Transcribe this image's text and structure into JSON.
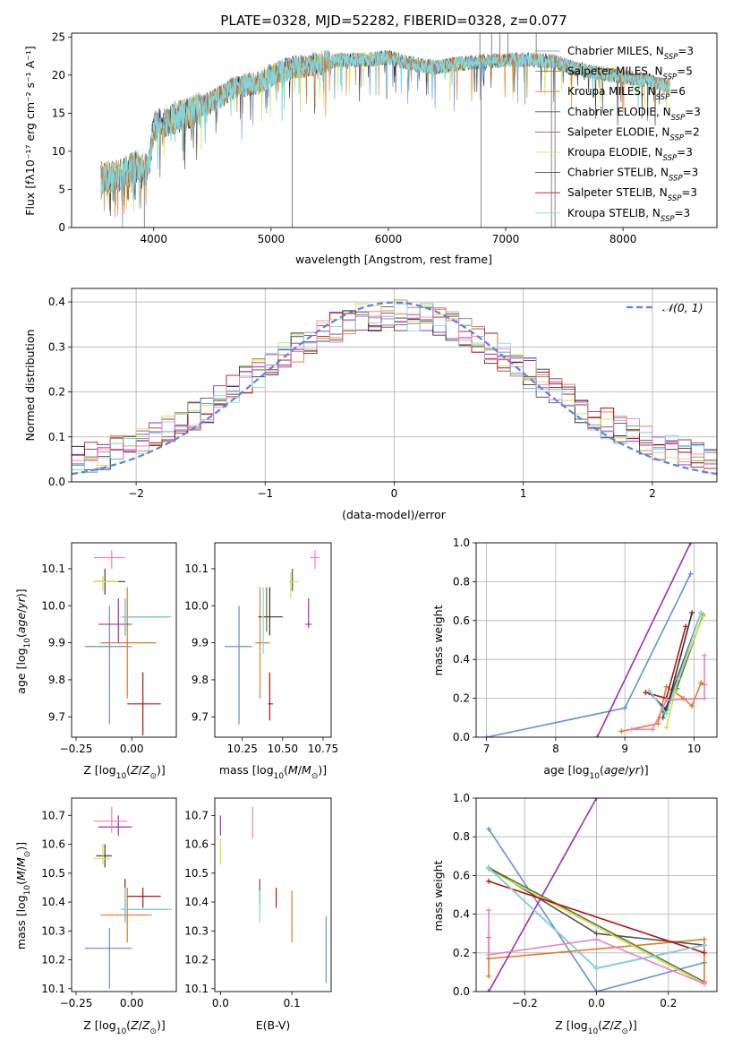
{
  "figure_title": "PLATE=0328, MJD=52282, FIBERID=0328, z=0.077",
  "colors": {
    "Chabrier MILES": "#6a8fd6",
    "Salpeter MILES": "#5a7a3a",
    "Kroupa MILES": "#e07b27",
    "Chabrier ELODIE": "#555555",
    "Salpeter ELODIE": "#9b30b0",
    "Kroupa ELODIE": "#d4e04a",
    "Chabrier STELIB": "#333333",
    "Salpeter STELIB": "#b31515",
    "Kroupa STELIB": "#80d8e0",
    "pink": "#e884c0",
    "purple": "#8a2cb0"
  },
  "chart_data": [
    {
      "type": "line",
      "title": "PLATE=0328, MJD=52282, FIBERID=0328, z=0.077",
      "xlabel": "wavelength [Angstrom, rest frame]",
      "ylabel": "Flux [fλ10⁻¹⁷ erg cm⁻² s⁻¹ A⁻¹]",
      "xlim": [
        3300,
        8800
      ],
      "ylim": [
        0,
        25.5
      ],
      "xticks": [
        4000,
        5000,
        6000,
        7000,
        8000
      ],
      "yticks": [
        0,
        5,
        10,
        15,
        20,
        25
      ],
      "legend_position": "top-right",
      "legend": [
        {
          "label": "Chabrier MILES, N",
          "sub": "SSP",
          "suffix": "=3"
        },
        {
          "label": "Salpeter MILES, N",
          "sub": "SSP",
          "suffix": "=5"
        },
        {
          "label": "Kroupa MILES, N",
          "sub": "SSP",
          "suffix": "=6"
        },
        {
          "label": "Chabrier ELODIE, N",
          "sub": "SSP",
          "suffix": "=3"
        },
        {
          "label": "Salpeter ELODIE, N",
          "sub": "SSP",
          "suffix": "=2"
        },
        {
          "label": "Kroupa ELODIE, N",
          "sub": "SSP",
          "suffix": "=3"
        },
        {
          "label": "Chabrier STELIB, N",
          "sub": "SSP",
          "suffix": "=3"
        },
        {
          "label": "Salpeter STELIB, N",
          "sub": "SSP",
          "suffix": "=3"
        },
        {
          "label": "Kroupa STELIB, N",
          "sub": "SSP",
          "suffix": "=3"
        }
      ],
      "spectrum_envelope": {
        "x": [
          3550,
          3700,
          3850,
          3950,
          4000,
          4100,
          4300,
          4500,
          4700,
          4900,
          5000,
          5200,
          5400,
          5600,
          5800,
          6000,
          6200,
          6400,
          6600,
          6800,
          7000,
          7200,
          7400,
          7600,
          7800,
          8000,
          8200,
          8400
        ],
        "y": [
          6.5,
          6.8,
          8.0,
          7.5,
          13.0,
          14.0,
          15.0,
          16.5,
          18.5,
          19.0,
          20.0,
          21.0,
          21.5,
          22.0,
          22.0,
          22.3,
          21.5,
          21.0,
          21.5,
          21.8,
          22.0,
          22.0,
          21.8,
          20.8,
          20.2,
          19.8,
          19.3,
          18.5
        ]
      }
    },
    {
      "type": "line",
      "xlabel": "(data-model)/error",
      "ylabel": "Normed distribution",
      "xlim": [
        -2.5,
        2.5
      ],
      "ylim": [
        0,
        0.43
      ],
      "xticks": [
        -2,
        -1,
        0,
        1,
        2
      ],
      "yticks": [
        0.0,
        0.1,
        0.2,
        0.3,
        0.4
      ],
      "legend_position": "top-right",
      "legend": [
        {
          "label": "𝒩(0, 1)"
        }
      ],
      "gaussian": {
        "mean": 0,
        "sigma": 1
      }
    },
    {
      "type": "scatter",
      "xlabel": "Z [log10(Z/Z⊙)]",
      "ylabel": "age  [log10(age/yr)]",
      "xlim": [
        -0.27,
        0.2
      ],
      "ylim": [
        9.645,
        10.17
      ],
      "xticks": [
        -0.25,
        0.0
      ],
      "xtick_labels": [
        "−0.25",
        "0.00"
      ],
      "yticks": [
        9.7,
        9.8,
        9.9,
        10.0,
        10.1
      ],
      "errorbars": [
        {
          "name": "Chabrier MILES",
          "x": -0.1,
          "y": 9.89,
          "x0": -0.21,
          "x1": 0.0,
          "y0": 9.68,
          "y1": 10.0
        },
        {
          "name": "Salpeter MILES",
          "x": -0.12,
          "y": 10.065,
          "x0": -0.17,
          "x1": -0.03,
          "y0": 10.03,
          "y1": 10.1
        },
        {
          "name": "Kroupa MILES",
          "x": -0.02,
          "y": 9.9,
          "x0": -0.14,
          "x1": 0.11,
          "y0": 9.75,
          "y1": 10.05
        },
        {
          "name": "Chabrier ELODIE",
          "x": -0.12,
          "y": 10.065,
          "x0": -0.17,
          "x1": -0.03,
          "y0": 10.03,
          "y1": 10.1
        },
        {
          "name": "Salpeter ELODIE",
          "x": -0.06,
          "y": 9.95,
          "x0": -0.15,
          "x1": 0.0,
          "y0": 9.9,
          "y1": 10.02
        },
        {
          "name": "Kroupa ELODIE",
          "x": -0.13,
          "y": 10.065,
          "x0": -0.17,
          "x1": -0.06,
          "y0": 10.04,
          "y1": 10.08
        },
        {
          "name": "Chabrier STELIB",
          "x": -0.03,
          "y": 9.97,
          "x0": -0.04,
          "x1": 0.17,
          "y0": 9.92,
          "y1": 10.02
        },
        {
          "name": "Salpeter STELIB",
          "x": 0.05,
          "y": 9.735,
          "x0": -0.02,
          "x1": 0.13,
          "y0": 9.65,
          "y1": 9.82
        },
        {
          "name": "Kroupa STELIB",
          "x": -0.03,
          "y": 9.97,
          "x0": -0.05,
          "x1": 0.18,
          "y0": 9.92,
          "y1": 10.02
        },
        {
          "name": "pink",
          "x": -0.09,
          "y": 10.13,
          "x0": -0.17,
          "x1": -0.03,
          "y0": 10.1,
          "y1": 10.15
        }
      ]
    },
    {
      "type": "scatter",
      "xlabel": "mass [log10(M/M⊙)]",
      "xlim": [
        10.08,
        10.8
      ],
      "ylim": [
        9.645,
        10.17
      ],
      "xticks": [
        10.25,
        10.5,
        10.75
      ],
      "xtick_labels": [
        "10.25",
        "10.50",
        "10.75"
      ],
      "yticks": [
        9.7,
        9.8,
        9.9,
        10.0,
        10.1
      ],
      "errorbars": [
        {
          "name": "Chabrier MILES",
          "x": 10.23,
          "y": 9.89,
          "x0": 10.14,
          "x1": 10.31,
          "y0": 9.68,
          "y1": 10.0
        },
        {
          "name": "Salpeter MILES",
          "x": 10.4,
          "y": 9.97,
          "x0": 10.4,
          "x1": 10.4,
          "y0": 9.93,
          "y1": 10.05
        },
        {
          "name": "Kroupa MILES",
          "x": 10.36,
          "y": 9.9,
          "x0": 10.33,
          "x1": 10.42,
          "y0": 9.75,
          "y1": 10.05
        },
        {
          "name": "Chabrier ELODIE",
          "x": 10.56,
          "y": 10.065,
          "x0": 10.56,
          "x1": 10.56,
          "y0": 10.04,
          "y1": 10.1
        },
        {
          "name": "Salpeter ELODIE",
          "x": 10.66,
          "y": 9.95,
          "x0": 10.64,
          "x1": 10.68,
          "y0": 9.94,
          "y1": 10.02
        },
        {
          "name": "Kroupa ELODIE",
          "x": 10.55,
          "y": 10.065,
          "x0": 10.54,
          "x1": 10.6,
          "y0": 10.02,
          "y1": 10.09
        },
        {
          "name": "Chabrier STELIB",
          "x": 10.42,
          "y": 9.97,
          "x0": 10.35,
          "x1": 10.5,
          "y0": 9.92,
          "y1": 10.05
        },
        {
          "name": "Salpeter STELIB",
          "x": 10.42,
          "y": 9.735,
          "x0": 10.41,
          "x1": 10.44,
          "y0": 9.69,
          "y1": 9.82
        },
        {
          "name": "Kroupa STELIB",
          "x": 10.38,
          "y": 9.97,
          "x0": 10.37,
          "x1": 10.38,
          "y0": 9.87,
          "y1": 10.05
        },
        {
          "name": "pink",
          "x": 10.7,
          "y": 10.13,
          "x0": 10.67,
          "x1": 10.73,
          "y0": 10.1,
          "y1": 10.15
        }
      ]
    },
    {
      "type": "line",
      "xlabel": "age  [log10(age/yr)]",
      "ylabel": "mass weight",
      "xlim": [
        6.85,
        10.33
      ],
      "ylim": [
        0,
        1.0
      ],
      "xticks": [
        7,
        8,
        9,
        10
      ],
      "yticks": [
        0.0,
        0.2,
        0.4,
        0.6,
        0.8,
        1.0
      ],
      "series": [
        {
          "name": "Chabrier MILES",
          "x": [
            7.0,
            9.0,
            9.95
          ],
          "y": [
            0.0,
            0.15,
            0.84
          ]
        },
        {
          "name": "Salpeter MILES",
          "x": [
            9.55,
            9.75,
            10.13
          ],
          "y": [
            0.13,
            0.25,
            0.63
          ]
        },
        {
          "name": "Kroupa MILES",
          "x": [
            8.95,
            9.48,
            9.6,
            9.85,
            9.97,
            10.1,
            10.15
          ],
          "y": [
            0.03,
            0.07,
            0.26,
            0.2,
            0.16,
            0.28,
            0.27
          ]
        },
        {
          "name": "Chabrier ELODIE",
          "x": [
            9.55,
            9.75,
            10.1
          ],
          "y": [
            0.1,
            0.3,
            0.64
          ]
        },
        {
          "name": "Salpeter ELODIE",
          "x": [
            8.6,
            9.95
          ],
          "y": [
            0.0,
            1.0
          ]
        },
        {
          "name": "Kroupa ELODIE",
          "x": [
            9.6,
            9.77,
            10.13
          ],
          "y": [
            0.05,
            0.3,
            0.62
          ]
        },
        {
          "name": "Chabrier STELIB",
          "x": [
            9.35,
            9.6,
            9.97
          ],
          "y": [
            0.23,
            0.14,
            0.64
          ]
        },
        {
          "name": "Salpeter STELIB",
          "x": [
            9.3,
            9.6,
            9.88
          ],
          "y": [
            0.23,
            0.2,
            0.57
          ]
        },
        {
          "name": "Kroupa STELIB",
          "x": [
            9.35,
            9.6,
            10.1
          ],
          "y": [
            0.24,
            0.12,
            0.64
          ]
        },
        {
          "name": "pink",
          "x": [
            9.1,
            9.4,
            9.6,
            10.15,
            10.15
          ],
          "y": [
            0.04,
            0.04,
            0.19,
            0.2,
            0.42
          ]
        }
      ]
    },
    {
      "type": "scatter",
      "xlabel": "Z [log10(Z/Z⊙)]",
      "ylabel": "mass [log10(M/M⊙)]",
      "xlim": [
        -0.27,
        0.2
      ],
      "ylim": [
        10.09,
        10.76
      ],
      "xticks": [
        -0.25,
        0.0
      ],
      "xtick_labels": [
        "−0.25",
        "0.00"
      ],
      "yticks": [
        10.1,
        10.2,
        10.3,
        10.4,
        10.5,
        10.6,
        10.7
      ],
      "errorbars": [
        {
          "name": "Chabrier MILES",
          "x": -0.1,
          "y": 10.24,
          "x0": -0.21,
          "x1": 0.0,
          "y0": 10.1,
          "y1": 10.31
        },
        {
          "name": "Salpeter MILES",
          "x": -0.12,
          "y": 10.56,
          "x0": -0.16,
          "x1": -0.09,
          "y0": 10.52,
          "y1": 10.6
        },
        {
          "name": "Kroupa MILES",
          "x": -0.02,
          "y": 10.355,
          "x0": -0.14,
          "x1": 0.09,
          "y0": 10.26,
          "y1": 10.45
        },
        {
          "name": "Chabrier ELODIE",
          "x": -0.12,
          "y": 10.56,
          "x0": -0.16,
          "x1": -0.09,
          "y0": 10.52,
          "y1": 10.6
        },
        {
          "name": "Salpeter ELODIE",
          "x": -0.06,
          "y": 10.66,
          "x0": -0.15,
          "x1": 0.0,
          "y0": 10.63,
          "y1": 10.7
        },
        {
          "name": "Kroupa ELODIE",
          "x": -0.13,
          "y": 10.55,
          "x0": -0.17,
          "x1": -0.1,
          "y0": 10.53,
          "y1": 10.6
        },
        {
          "name": "Chabrier STELIB",
          "x": -0.03,
          "y": 10.375,
          "x0": -0.04,
          "x1": 0.16,
          "y0": 10.33,
          "y1": 10.48
        },
        {
          "name": "Salpeter STELIB",
          "x": 0.05,
          "y": 10.42,
          "x0": -0.02,
          "x1": 0.13,
          "y0": 10.38,
          "y1": 10.45
        },
        {
          "name": "Kroupa STELIB",
          "x": -0.03,
          "y": 10.375,
          "x0": -0.05,
          "x1": 0.18,
          "y0": 10.33,
          "y1": 10.45
        },
        {
          "name": "pink",
          "x": -0.09,
          "y": 10.68,
          "x0": -0.17,
          "x1": -0.02,
          "y0": 10.64,
          "y1": 10.73
        }
      ]
    },
    {
      "type": "scatter",
      "xlabel": "E(B-V)",
      "xlim": [
        -0.008,
        0.155
      ],
      "ylim": [
        10.09,
        10.76
      ],
      "xticks": [
        0.0,
        0.1
      ],
      "xtick_labels": [
        "0.0",
        "0.1"
      ],
      "yticks": [
        10.1,
        10.2,
        10.3,
        10.4,
        10.5,
        10.6,
        10.7
      ],
      "errorbars": [
        {
          "name": "Chabrier MILES",
          "x": 0.148,
          "y": 10.24,
          "x0": 0.148,
          "x1": 0.148,
          "y0": 10.12,
          "y1": 10.35
        },
        {
          "name": "Kroupa MILES",
          "x": 0.1,
          "y": 10.35,
          "x0": 0.1,
          "x1": 0.1,
          "y0": 10.26,
          "y1": 10.44
        },
        {
          "name": "Chabrier ELODIE",
          "x": 0.055,
          "y": 10.43,
          "x0": 0.055,
          "x1": 0.055,
          "y0": 10.39,
          "y1": 10.48
        },
        {
          "name": "Salpeter ELODIE",
          "x": 0.0,
          "y": 10.66,
          "x0": 0.0,
          "x1": 0.0,
          "y0": 10.63,
          "y1": 10.7
        },
        {
          "name": "Kroupa ELODIE",
          "x": 0.0,
          "y": 10.56,
          "x0": 0.0,
          "x1": 0.0,
          "y0": 10.53,
          "y1": 10.62
        },
        {
          "name": "Salpeter STELIB",
          "x": 0.078,
          "y": 10.415,
          "x0": 0.078,
          "x1": 0.078,
          "y0": 10.38,
          "y1": 10.45
        },
        {
          "name": "Kroupa STELIB",
          "x": 0.055,
          "y": 10.37,
          "x0": 0.055,
          "x1": 0.055,
          "y0": 10.33,
          "y1": 10.44
        },
        {
          "name": "pink",
          "x": 0.045,
          "y": 10.68,
          "x0": 0.045,
          "x1": 0.045,
          "y0": 10.62,
          "y1": 10.73
        }
      ]
    },
    {
      "type": "line",
      "xlabel": "Z [log10(Z/Z⊙)]",
      "ylabel": "mass weight",
      "xlim": [
        -0.335,
        0.335
      ],
      "ylim": [
        0,
        1.0
      ],
      "xticks": [
        -0.2,
        0.0,
        0.2
      ],
      "xtick_labels": [
        "−0.2",
        "0.0",
        "0.2"
      ],
      "yticks": [
        0.0,
        0.2,
        0.4,
        0.6,
        0.8,
        1.0
      ],
      "series": [
        {
          "name": "Chabrier MILES",
          "x": [
            -0.3,
            0.0,
            0.3
          ],
          "y": [
            0.84,
            0.0,
            0.15
          ]
        },
        {
          "name": "Salpeter MILES",
          "x": [
            -0.3,
            0.3
          ],
          "y": [
            0.64,
            0.05
          ]
        },
        {
          "name": "Kroupa MILES",
          "x": [
            -0.3,
            -0.3,
            -0.3,
            0.3,
            0.3
          ],
          "y": [
            0.08,
            0.28,
            0.17,
            0.27,
            0.05
          ]
        },
        {
          "name": "Chabrier ELODIE",
          "x": [
            -0.3,
            0.0,
            0.3
          ],
          "y": [
            0.64,
            0.3,
            0.24
          ]
        },
        {
          "name": "Salpeter ELODIE",
          "x": [
            -0.3,
            0.0
          ],
          "y": [
            0.0,
            1.0
          ]
        },
        {
          "name": "Kroupa ELODIE",
          "x": [
            -0.3,
            0.3
          ],
          "y": [
            0.63,
            0.04
          ]
        },
        {
          "name": "Chabrier STELIB",
          "x": [
            -0.3,
            0.0,
            0.3
          ],
          "y": [
            0.64,
            0.12,
            0.24
          ]
        },
        {
          "name": "Salpeter STELIB",
          "x": [
            -0.3,
            0.3
          ],
          "y": [
            0.57,
            0.2
          ]
        },
        {
          "name": "Kroupa STELIB",
          "x": [
            -0.3,
            0.0,
            0.3
          ],
          "y": [
            0.64,
            0.12,
            0.24
          ]
        },
        {
          "name": "pink",
          "x": [
            -0.3,
            -0.3,
            0.0,
            0.3
          ],
          "y": [
            0.42,
            0.19,
            0.27,
            0.04
          ]
        }
      ]
    }
  ]
}
